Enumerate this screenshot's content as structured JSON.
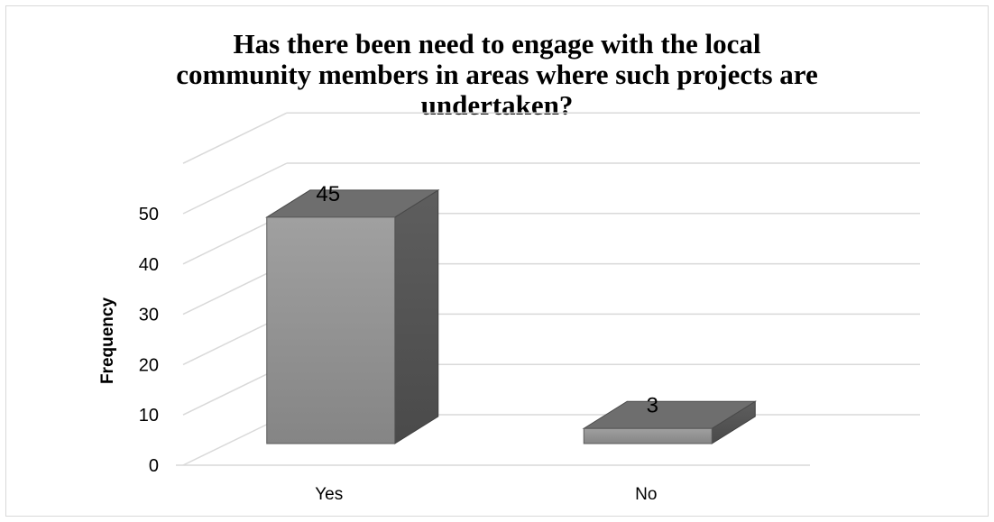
{
  "chart_data": {
    "type": "bar",
    "title_lines": [
      "Has there been need to engage with the local",
      "community members in areas where such projects are",
      "undertaken?"
    ],
    "categories": [
      "Yes",
      "No"
    ],
    "values": [
      45,
      3
    ],
    "data_labels": [
      "45",
      "3"
    ],
    "xlabel": "",
    "ylabel": "Frequency",
    "ylim": [
      0,
      50
    ],
    "yticks": [
      "0",
      "10",
      "20",
      "30",
      "40",
      "50"
    ],
    "grid": true,
    "three_d": true,
    "colors": {
      "bar_front": "#8c8c8c",
      "bar_top": "#6e6e6e",
      "bar_side": "#4f4f4f",
      "grid": "#d9d9d9"
    }
  }
}
